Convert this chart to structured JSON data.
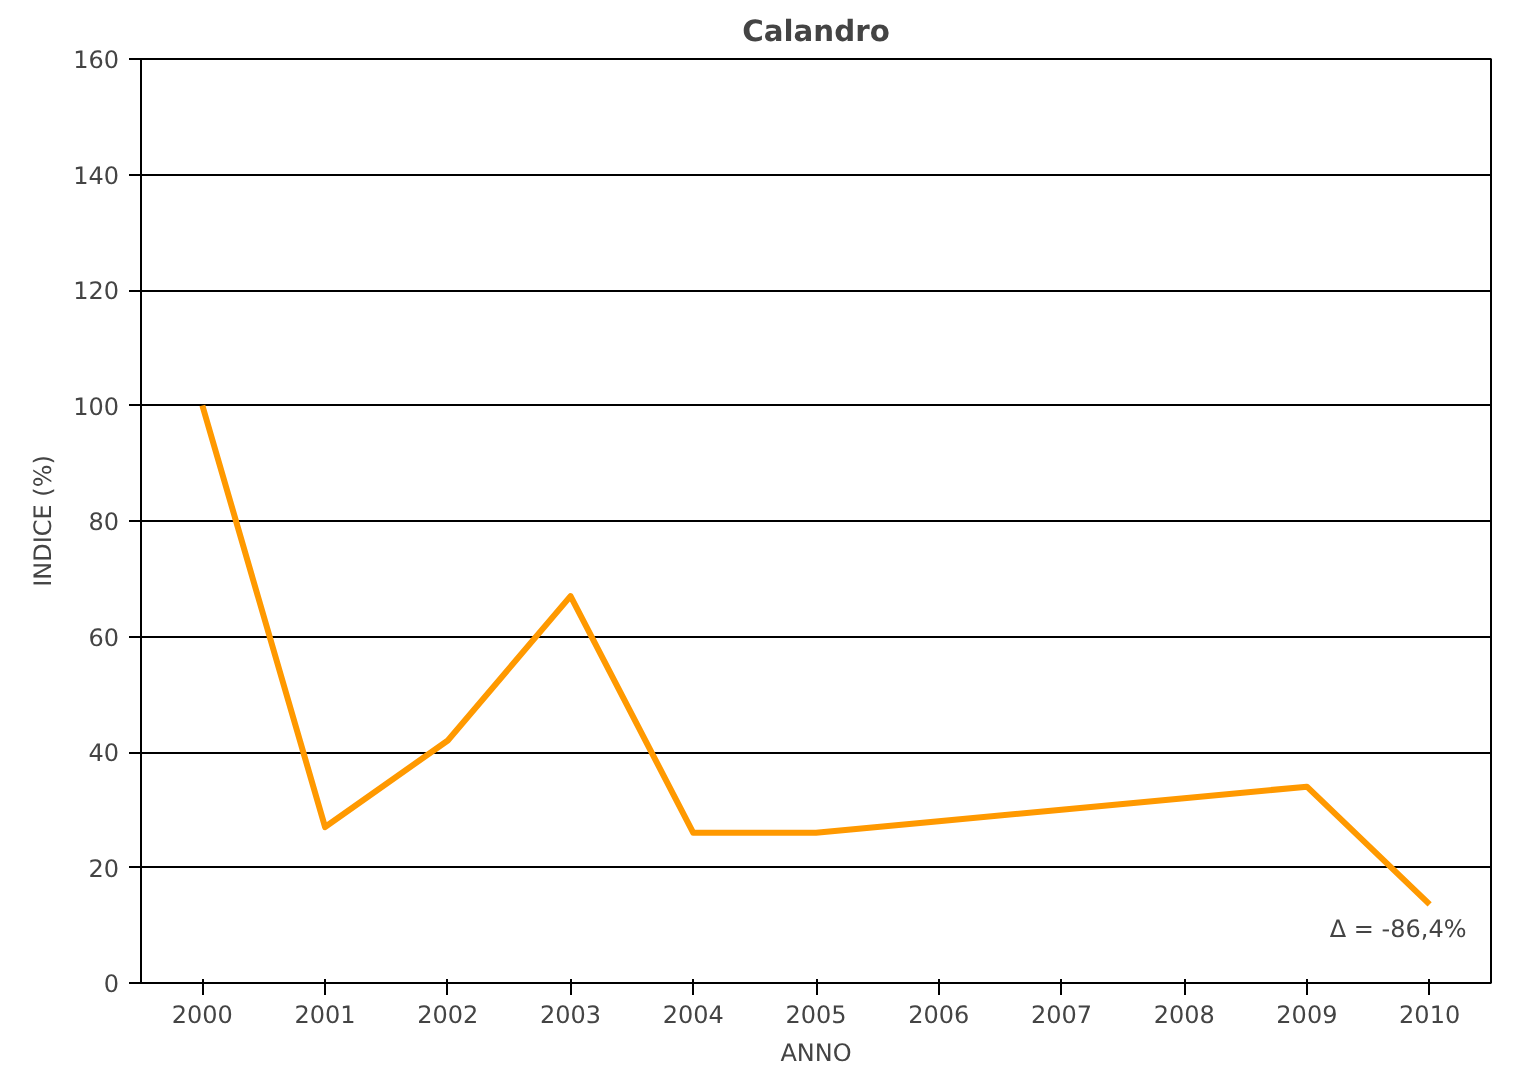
{
  "chart_data": {
    "type": "line",
    "title": "Calandro",
    "xlabel": "ANNO",
    "ylabel": "INDICE (%)",
    "categories": [
      "2000",
      "2001",
      "2002",
      "2003",
      "2004",
      "2005",
      "2006",
      "2007",
      "2008",
      "2009",
      "2010"
    ],
    "series": [
      {
        "color": "#ff9900",
        "values": [
          100,
          27,
          42,
          67,
          26,
          26,
          28,
          30,
          32,
          34,
          13.6
        ]
      }
    ],
    "ylim": [
      0,
      160
    ],
    "yticks": [
      0,
      20,
      40,
      60,
      80,
      100,
      120,
      140,
      160
    ],
    "grid": "y",
    "marker": "none",
    "line_style": "solid",
    "annotations": [
      "Δ = -86,4%"
    ]
  }
}
